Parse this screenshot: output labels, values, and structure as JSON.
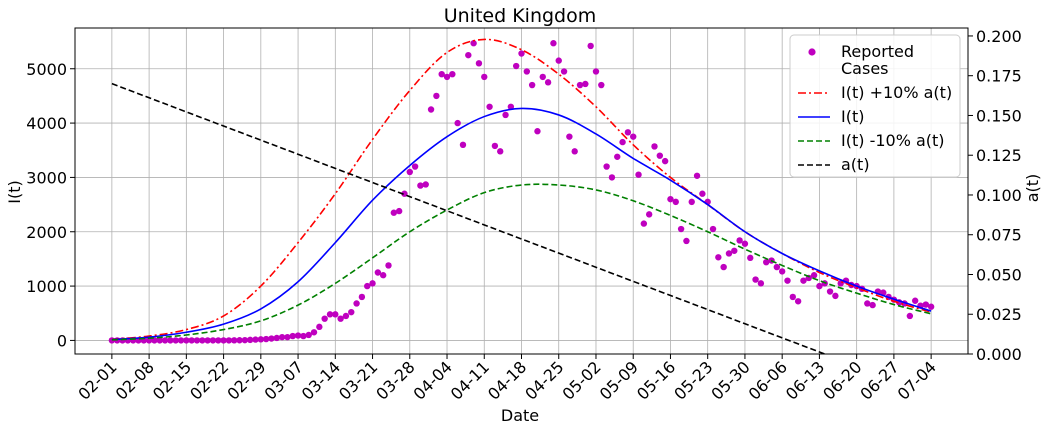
{
  "chart_data": {
    "type": "line",
    "title": "United Kingdom",
    "xlabel": "Date",
    "ylabel": "I(t)",
    "y2label": "a(t)",
    "ylim": [
      -250,
      5750
    ],
    "y2lim": [
      0.0,
      0.205
    ],
    "yticks": [
      0,
      1000,
      2000,
      3000,
      4000,
      5000
    ],
    "y2ticks": [
      0.0,
      0.025,
      0.05,
      0.075,
      0.1,
      0.125,
      0.15,
      0.175,
      0.2
    ],
    "y2ticklabels": [
      "0.000",
      "0.025",
      "0.050",
      "0.075",
      "0.100",
      "0.125",
      "0.150",
      "0.175",
      "0.200"
    ],
    "xticks": [
      "02-01",
      "02-08",
      "02-15",
      "02-22",
      "02-29",
      "03-07",
      "03-14",
      "03-21",
      "03-28",
      "04-04",
      "04-11",
      "04-18",
      "04-25",
      "05-02",
      "05-09",
      "05-16",
      "05-23",
      "05-30",
      "06-06",
      "06-13",
      "06-20",
      "06-27",
      "07-04"
    ],
    "grid": true,
    "legend_position": "upper right",
    "series": [
      {
        "name": "Reported\nCases",
        "kind": "scatter",
        "color": "#bf00bf",
        "x": [
          "02-01",
          "02-02",
          "02-03",
          "02-04",
          "02-05",
          "02-06",
          "02-07",
          "02-08",
          "02-09",
          "02-10",
          "02-11",
          "02-12",
          "02-13",
          "02-14",
          "02-15",
          "02-16",
          "02-17",
          "02-18",
          "02-19",
          "02-20",
          "02-21",
          "02-22",
          "02-23",
          "02-24",
          "02-25",
          "02-26",
          "02-27",
          "02-28",
          "02-29",
          "03-01",
          "03-02",
          "03-03",
          "03-04",
          "03-05",
          "03-06",
          "03-07",
          "03-08",
          "03-09",
          "03-10",
          "03-11",
          "03-12",
          "03-13",
          "03-14",
          "03-15",
          "03-16",
          "03-17",
          "03-18",
          "03-19",
          "03-20",
          "03-21",
          "03-22",
          "03-23",
          "03-24",
          "03-25",
          "03-26",
          "03-27",
          "03-28",
          "03-29",
          "03-30",
          "03-31",
          "04-01",
          "04-02",
          "04-03",
          "04-04",
          "04-05",
          "04-06",
          "04-07",
          "04-08",
          "04-09",
          "04-10",
          "04-11",
          "04-12",
          "04-13",
          "04-14",
          "04-15",
          "04-16",
          "04-17",
          "04-18",
          "04-19",
          "04-20",
          "04-21",
          "04-22",
          "04-23",
          "04-24",
          "04-25",
          "04-26",
          "04-27",
          "04-28",
          "04-29",
          "04-30",
          "05-01",
          "05-02",
          "05-03",
          "05-04",
          "05-05",
          "05-06",
          "05-07",
          "05-08",
          "05-09",
          "05-10",
          "05-11",
          "05-12",
          "05-13",
          "05-14",
          "05-15",
          "05-16",
          "05-17",
          "05-18",
          "05-19",
          "05-20",
          "05-21",
          "05-22",
          "05-23",
          "05-24",
          "05-25",
          "05-26",
          "05-27",
          "05-28",
          "05-29",
          "05-30",
          "05-31",
          "06-01",
          "06-02",
          "06-03",
          "06-04",
          "06-05",
          "06-06",
          "06-07",
          "06-08",
          "06-09",
          "06-10",
          "06-11",
          "06-12",
          "06-13",
          "06-14",
          "06-15",
          "06-16",
          "06-17",
          "06-18",
          "06-19",
          "06-20",
          "06-21",
          "06-22",
          "06-23",
          "06-24",
          "06-25",
          "06-26",
          "06-27",
          "06-28",
          "06-29",
          "06-30",
          "07-01",
          "07-02",
          "07-03",
          "07-04"
        ],
        "y": [
          0,
          0,
          0,
          0,
          0,
          0,
          0,
          0,
          0,
          0,
          0,
          0,
          0,
          0,
          0,
          0,
          0,
          0,
          0,
          0,
          0,
          0,
          0,
          2,
          3,
          5,
          10,
          15,
          20,
          25,
          35,
          45,
          60,
          60,
          80,
          90,
          80,
          100,
          150,
          250,
          400,
          480,
          480,
          400,
          450,
          520,
          680,
          800,
          1000,
          1050,
          1250,
          1200,
          1380,
          2350,
          2380,
          2700,
          3100,
          3200,
          2850,
          2870,
          4250,
          4500,
          4900,
          4850,
          4900,
          4000,
          3600,
          5250,
          5470,
          5100,
          4850,
          4300,
          3580,
          3480,
          4150,
          4300,
          5050,
          5280,
          4950,
          4700,
          3850,
          4850,
          4750,
          5470,
          5150,
          4950,
          3750,
          3480,
          4700,
          4720,
          5420,
          4950,
          4700,
          3200,
          3000,
          3380,
          3650,
          3830,
          3750,
          3050,
          2150,
          2320,
          3570,
          3400,
          3300,
          2600,
          2550,
          2050,
          1830,
          2550,
          3030,
          2700,
          2550,
          2050,
          1530,
          1350,
          1600,
          1650,
          1840,
          1780,
          1520,
          1120,
          1050,
          1440,
          1470,
          1350,
          1270,
          1100,
          800,
          720,
          1100,
          1150,
          1200,
          1000,
          1050,
          900,
          820,
          1050,
          1100,
          1020,
          1000,
          950,
          680,
          650,
          900,
          880,
          800,
          750,
          700,
          680,
          450,
          730,
          640,
          660,
          620
        ],
        "y_axis": "left"
      },
      {
        "name": "I(t) +10% a(t)",
        "kind": "line",
        "color": "#ff0000",
        "dash": "dashdot",
        "x": [
          "02-01",
          "02-08",
          "02-15",
          "02-22",
          "02-29",
          "03-07",
          "03-14",
          "03-21",
          "03-28",
          "04-04",
          "04-11",
          "04-18",
          "04-25",
          "05-02",
          "05-09",
          "05-16",
          "05-23",
          "05-30",
          "06-06",
          "06-13",
          "06-20",
          "06-27",
          "07-04"
        ],
        "y": [
          20,
          80,
          200,
          450,
          1000,
          1800,
          2700,
          3700,
          4600,
          5300,
          5540,
          5350,
          4900,
          4300,
          3600,
          3000,
          2500,
          2000,
          1600,
          1250,
          970,
          720,
          520
        ],
        "y_axis": "left"
      },
      {
        "name": "I(t)",
        "kind": "line",
        "color": "#0000ff",
        "dash": "solid",
        "x": [
          "02-01",
          "02-08",
          "02-15",
          "02-22",
          "02-29",
          "03-07",
          "03-14",
          "03-21",
          "03-28",
          "04-04",
          "04-11",
          "04-18",
          "04-25",
          "05-02",
          "05-09",
          "05-16",
          "05-23",
          "05-30",
          "06-06",
          "06-13",
          "06-20",
          "06-27",
          "07-04"
        ],
        "y": [
          15,
          60,
          150,
          300,
          580,
          1080,
          1800,
          2580,
          3220,
          3750,
          4120,
          4270,
          4150,
          3800,
          3350,
          2950,
          2500,
          2000,
          1600,
          1280,
          1000,
          760,
          540
        ],
        "y_axis": "left"
      },
      {
        "name": "I(t) -10% a(t)",
        "kind": "line",
        "color": "#008000",
        "dash": "dashed",
        "x": [
          "02-01",
          "02-08",
          "02-15",
          "02-22",
          "02-29",
          "03-07",
          "03-14",
          "03-21",
          "03-28",
          "04-04",
          "04-11",
          "04-18",
          "04-25",
          "05-02",
          "05-09",
          "05-16",
          "05-23",
          "05-30",
          "06-06",
          "06-13",
          "06-20",
          "06-27",
          "07-04"
        ],
        "y": [
          10,
          40,
          100,
          200,
          360,
          650,
          1050,
          1520,
          2000,
          2400,
          2720,
          2860,
          2860,
          2770,
          2570,
          2300,
          2000,
          1680,
          1380,
          1100,
          870,
          660,
          490
        ],
        "y_axis": "left"
      },
      {
        "name": "a(t)",
        "kind": "line",
        "color": "#000000",
        "dash": "dashed",
        "x": [
          "02-01",
          "06-14"
        ],
        "y": [
          0.17,
          0.0
        ],
        "y_axis": "right"
      }
    ]
  }
}
